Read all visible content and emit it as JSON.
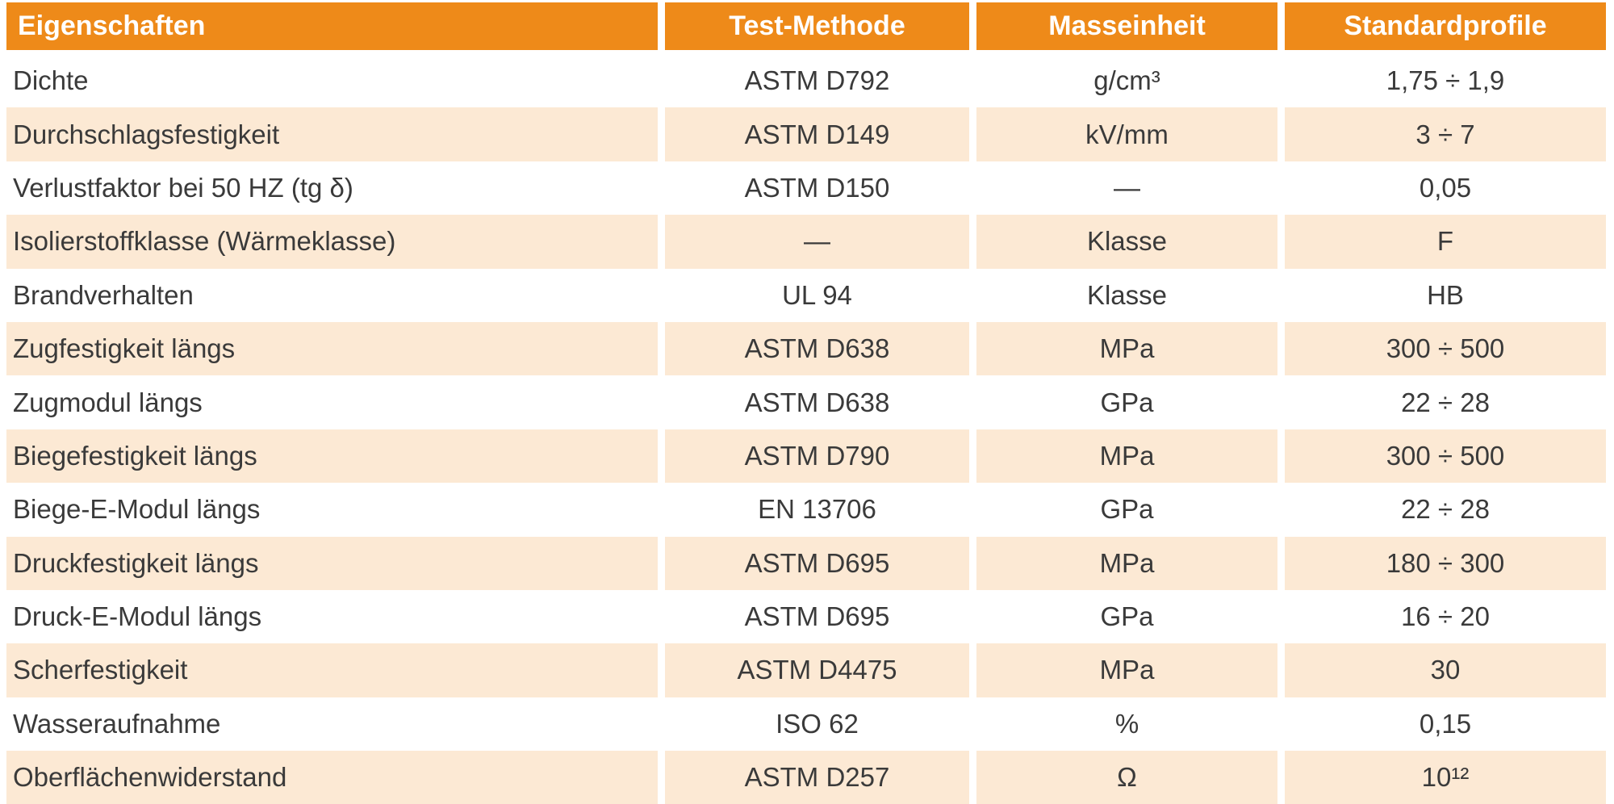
{
  "table": {
    "colors": {
      "header_bg": "#EE8A19",
      "header_text": "#FFFFFF",
      "row_alt_bg": "#FCE9D4",
      "row_bg": "#FFFFFF",
      "cell_text": "#3A3A3A"
    },
    "columns": [
      {
        "key": "eigenschaft",
        "label": "Eigenschaften"
      },
      {
        "key": "test_methode",
        "label": "Test-Methode"
      },
      {
        "key": "masseinheit",
        "label": "Masseinheit"
      },
      {
        "key": "standardprofile",
        "label": "Standardprofile"
      }
    ],
    "rows": [
      {
        "eigenschaft": "Dichte",
        "test_methode": "ASTM D792",
        "masseinheit": "g/cm³",
        "standardprofile": "1,75 ÷ 1,9",
        "shaded": false
      },
      {
        "eigenschaft": "Durchschlagsfestigkeit",
        "test_methode": "ASTM D149",
        "masseinheit": "kV/mm",
        "standardprofile": "3 ÷ 7",
        "shaded": true
      },
      {
        "eigenschaft": "Verlustfaktor bei 50 HZ (tg δ)",
        "test_methode": "ASTM D150",
        "masseinheit": "—",
        "standardprofile": "0,05",
        "shaded": false
      },
      {
        "eigenschaft": "Isolierstoffklasse (Wärmeklasse)",
        "test_methode": "—",
        "masseinheit": "Klasse",
        "standardprofile": "F",
        "shaded": true
      },
      {
        "eigenschaft": "Brandverhalten",
        "test_methode": "UL 94",
        "masseinheit": "Klasse",
        "standardprofile": "HB",
        "shaded": false
      },
      {
        "eigenschaft": "Zugfestigkeit längs",
        "test_methode": "ASTM D638",
        "masseinheit": "MPa",
        "standardprofile": "300 ÷ 500",
        "shaded": true
      },
      {
        "eigenschaft": "Zugmodul längs",
        "test_methode": "ASTM D638",
        "masseinheit": "GPa",
        "standardprofile": "22 ÷ 28",
        "shaded": false
      },
      {
        "eigenschaft": "Biegefestigkeit längs",
        "test_methode": "ASTM D790",
        "masseinheit": "MPa",
        "standardprofile": "300 ÷ 500",
        "shaded": true
      },
      {
        "eigenschaft": "Biege-E-Modul längs",
        "test_methode": "EN 13706",
        "masseinheit": "GPa",
        "standardprofile": "22 ÷ 28",
        "shaded": false
      },
      {
        "eigenschaft": "Druckfestigkeit längs",
        "test_methode": "ASTM D695",
        "masseinheit": "MPa",
        "standardprofile": "180 ÷ 300",
        "shaded": true
      },
      {
        "eigenschaft": "Druck-E-Modul längs",
        "test_methode": "ASTM D695",
        "masseinheit": "GPa",
        "standardprofile": "16 ÷ 20",
        "shaded": false
      },
      {
        "eigenschaft": "Scherfestigkeit",
        "test_methode": "ASTM D4475",
        "masseinheit": "MPa",
        "standardprofile": "30",
        "shaded": true
      },
      {
        "eigenschaft": "Wasseraufnahme",
        "test_methode": "ISO 62",
        "masseinheit": "%",
        "standardprofile": "0,15",
        "shaded": false
      },
      {
        "eigenschaft": "Oberflächenwiderstand",
        "test_methode": "ASTM D257",
        "masseinheit": "Ω",
        "standardprofile": "10¹²",
        "shaded": true
      }
    ]
  }
}
